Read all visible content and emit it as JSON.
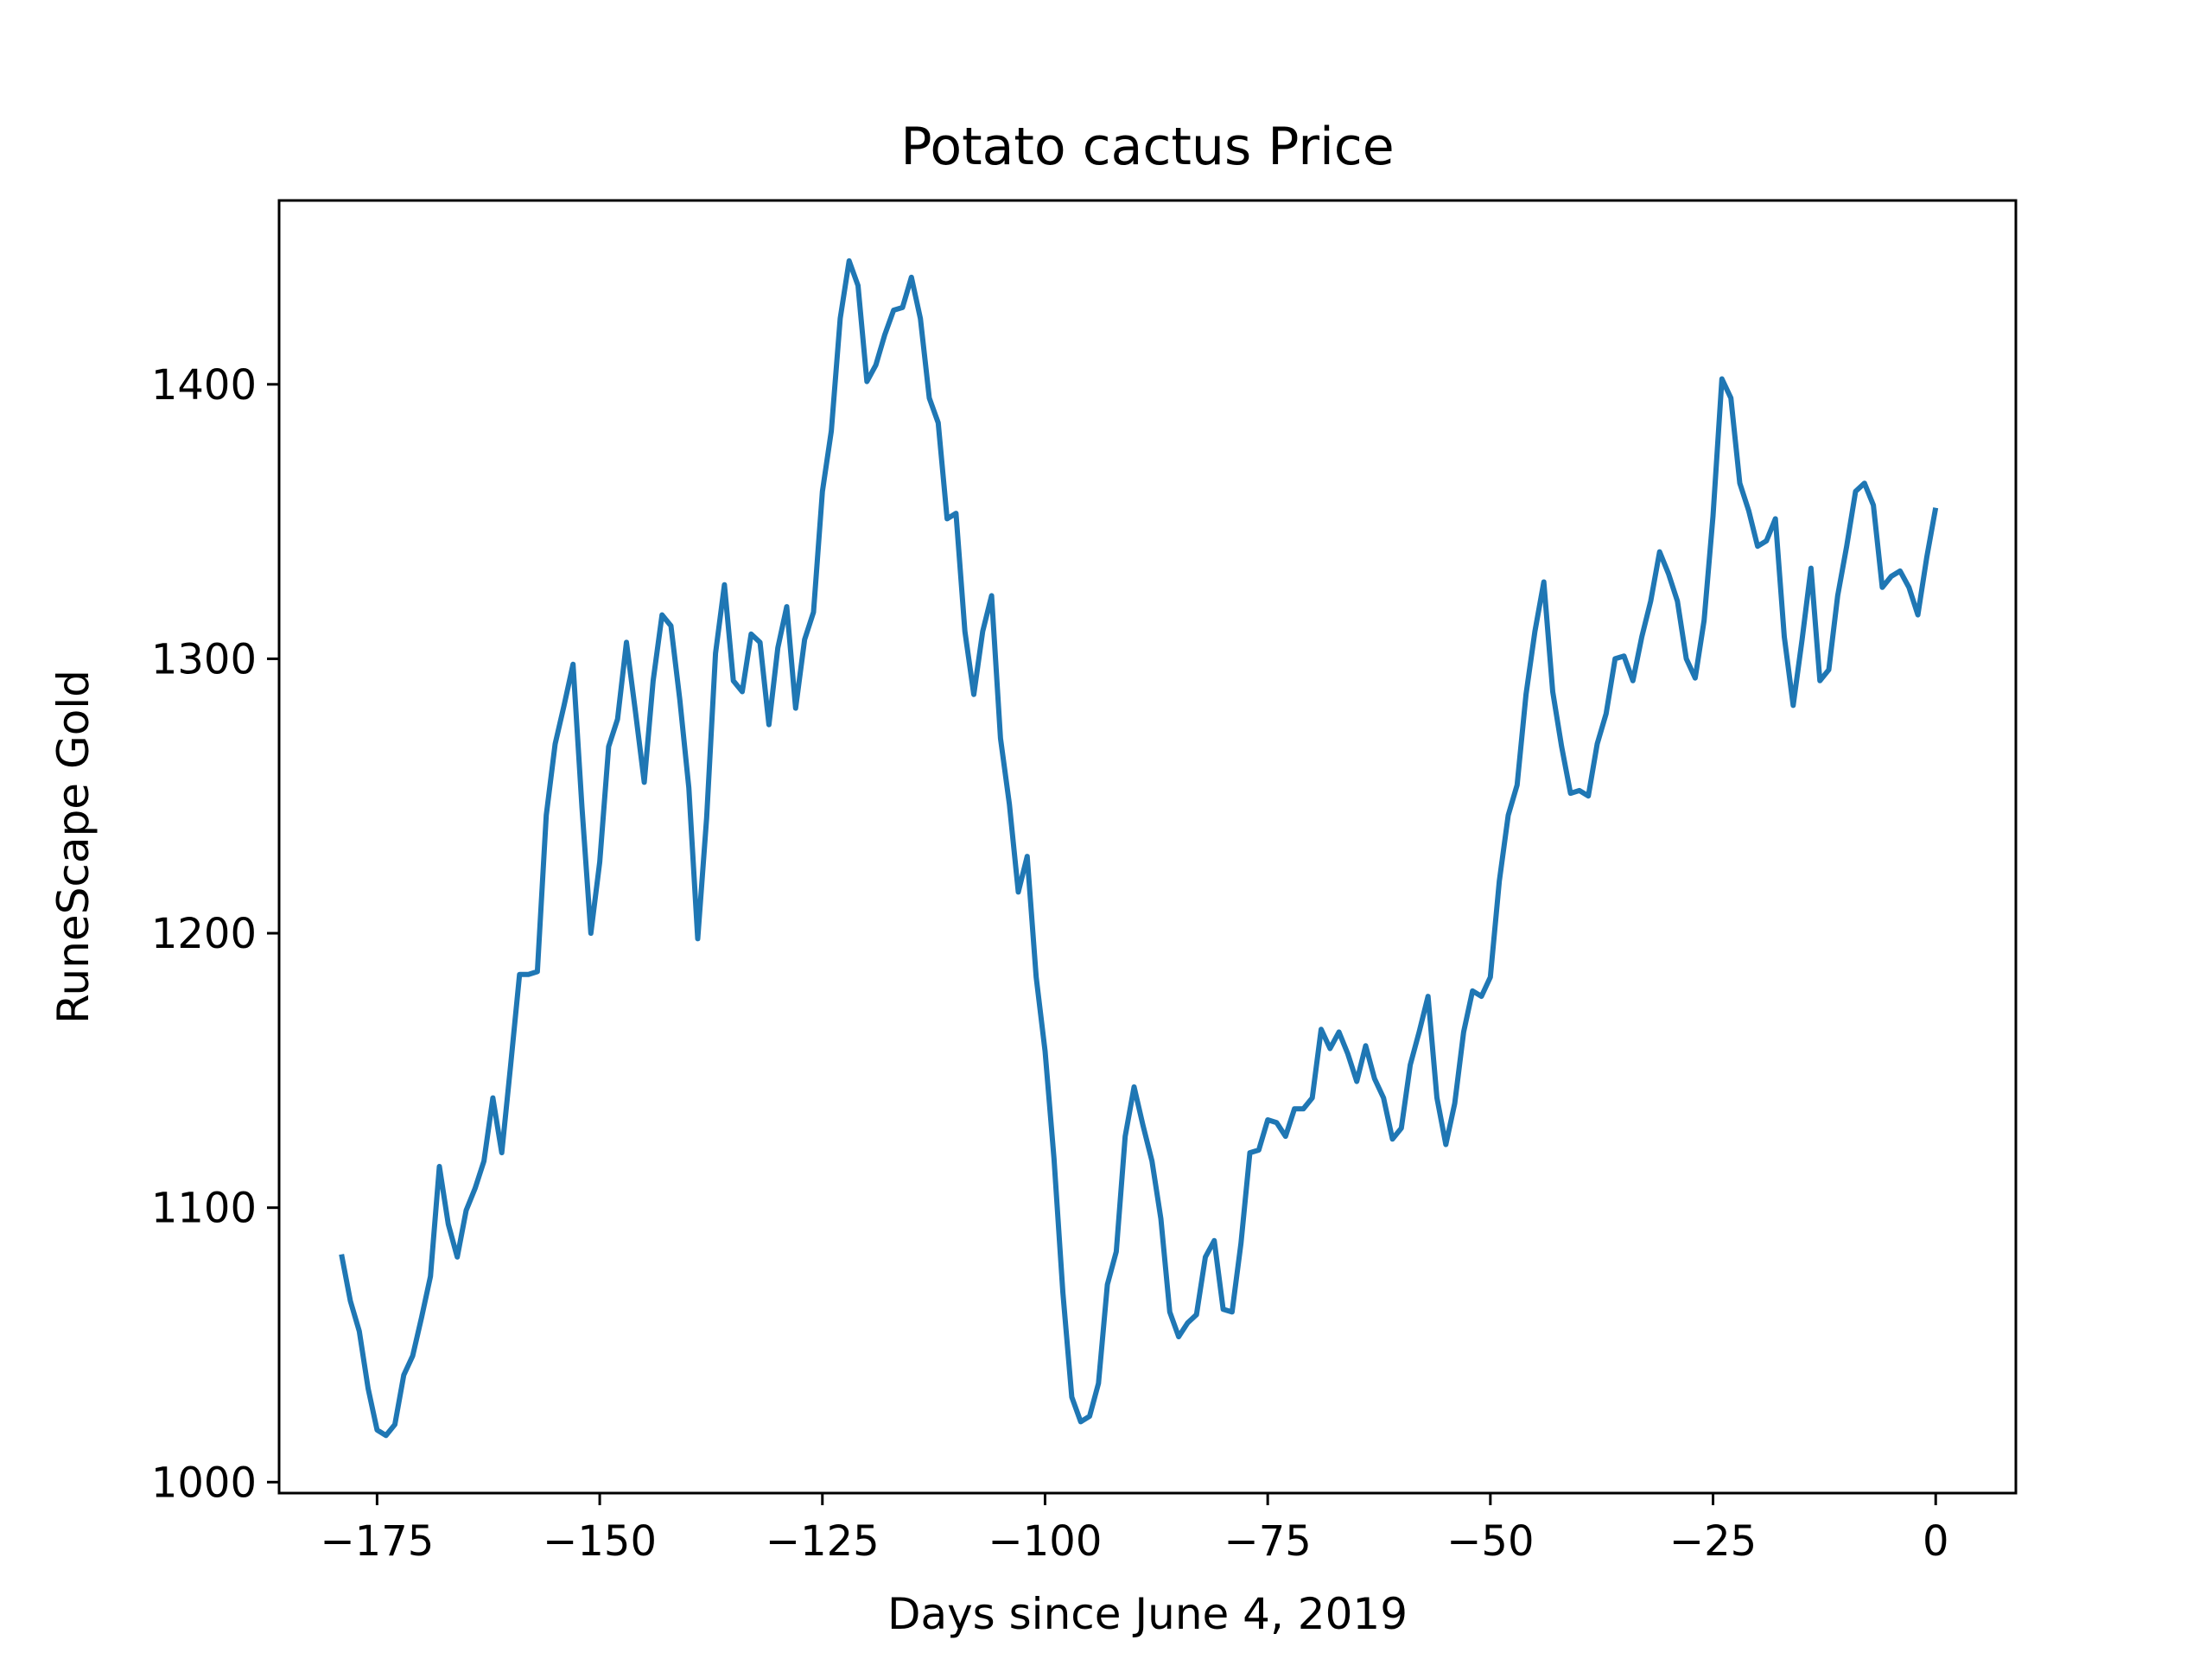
{
  "chart_data": {
    "type": "line",
    "title": "Potato cactus Price",
    "xlabel": "Days since June 4, 2019",
    "ylabel": "RuneScape Gold",
    "xlim": [
      -186,
      9
    ],
    "ylim": [
      996,
      1467
    ],
    "xticks": [
      -175,
      -150,
      -125,
      -100,
      -75,
      -50,
      -25,
      0
    ],
    "xtick_labels": [
      "−175",
      "−150",
      "−125",
      "−100",
      "−75",
      "−50",
      "−25",
      "0"
    ],
    "yticks": [
      1000,
      1100,
      1200,
      1300,
      1400
    ],
    "ytick_labels": [
      "1000",
      "1100",
      "1200",
      "1300",
      "1400"
    ],
    "grid": false,
    "line_color": "#1f77b4",
    "series": [
      {
        "x": [
          -179,
          -178,
          -177,
          -176,
          -175,
          -174,
          -173,
          -172,
          -171,
          -170,
          -169,
          -168,
          -167,
          -166,
          -165,
          -164,
          -163,
          -162,
          -161,
          -160,
          -159,
          -158,
          -157,
          -156,
          -155,
          -154,
          -153,
          -152,
          -151,
          -150,
          -149,
          -148,
          -147,
          -146,
          -145,
          -144,
          -143,
          -142,
          -141,
          -140,
          -139,
          -138,
          -137,
          -136,
          -135,
          -134,
          -133,
          -132,
          -131,
          -130,
          -129,
          -128,
          -127,
          -126,
          -125,
          -124,
          -123,
          -122,
          -121,
          -120,
          -119,
          -118,
          -117,
          -116,
          -115,
          -114,
          -113,
          -112,
          -111,
          -110,
          -109,
          -108,
          -107,
          -106,
          -105,
          -104,
          -103,
          -102,
          -101,
          -100,
          -99,
          -98,
          -97,
          -96,
          -95,
          -94,
          -93,
          -92,
          -91,
          -90,
          -89,
          -88,
          -87,
          -86,
          -85,
          -84,
          -83,
          -82,
          -81,
          -80,
          -79,
          -78,
          -77,
          -76,
          -75,
          -74,
          -73,
          -72,
          -71,
          -70,
          -69,
          -68,
          -67,
          -66,
          -65,
          -64,
          -63,
          -62,
          -61,
          -60,
          -59,
          -58,
          -57,
          -56,
          -55,
          -54,
          -53,
          -52,
          -51,
          -50,
          -49,
          -48,
          -47,
          -46,
          -45,
          -44,
          -43,
          -42,
          -41,
          -40,
          -39,
          -38,
          -37,
          -36,
          -35,
          -34,
          -33,
          -32,
          -31,
          -30,
          -29,
          -28,
          -27,
          -26,
          -25,
          -24,
          -23,
          -22,
          -21,
          -20,
          -19,
          -18,
          -17,
          -16,
          -15,
          -14,
          -13,
          -12,
          -11,
          -10,
          -9,
          -8,
          -7,
          -6,
          -5,
          -4,
          -3,
          -2,
          -1,
          0
        ],
        "y": [
          1083,
          1066,
          1055,
          1034,
          1019,
          1017,
          1021,
          1039,
          1046,
          1060,
          1075,
          1115,
          1094,
          1082,
          1099,
          1107,
          1117,
          1140,
          1120,
          1152,
          1185,
          1185,
          1186,
          1243,
          1269,
          1283,
          1298,
          1246,
          1200,
          1226,
          1268,
          1278,
          1306,
          1281,
          1255,
          1292,
          1316,
          1312,
          1285,
          1253,
          1198,
          1242,
          1302,
          1327,
          1292,
          1288,
          1309,
          1306,
          1276,
          1304,
          1319,
          1282,
          1307,
          1317,
          1361,
          1383,
          1424,
          1445,
          1436,
          1401,
          1407,
          1418,
          1427,
          1428,
          1439,
          1424,
          1395,
          1386,
          1351,
          1353,
          1310,
          1287,
          1310,
          1323,
          1271,
          1247,
          1215,
          1228,
          1184,
          1157,
          1118,
          1069,
          1031,
          1022,
          1024,
          1036,
          1072,
          1084,
          1126,
          1144,
          1130,
          1117,
          1096,
          1062,
          1053,
          1058,
          1061,
          1082,
          1088,
          1063,
          1062,
          1087,
          1120,
          1121,
          1132,
          1131,
          1126,
          1136,
          1136,
          1140,
          1165,
          1158,
          1164,
          1156,
          1146,
          1159,
          1147,
          1140,
          1125,
          1129,
          1152,
          1164,
          1177,
          1140,
          1123,
          1138,
          1164,
          1179,
          1177,
          1184,
          1219,
          1243,
          1254,
          1287,
          1310,
          1328,
          1288,
          1268,
          1251,
          1252,
          1250,
          1269,
          1280,
          1300,
          1301,
          1292,
          1308,
          1321,
          1339,
          1331,
          1321,
          1300,
          1293,
          1314,
          1352,
          1402,
          1395,
          1364,
          1354,
          1341,
          1343,
          1351,
          1308,
          1283,
          1307,
          1333,
          1292,
          1296,
          1323,
          1341,
          1361,
          1364,
          1356,
          1326,
          1330,
          1332,
          1326,
          1316,
          1337,
          1355
        ]
      }
    ]
  }
}
